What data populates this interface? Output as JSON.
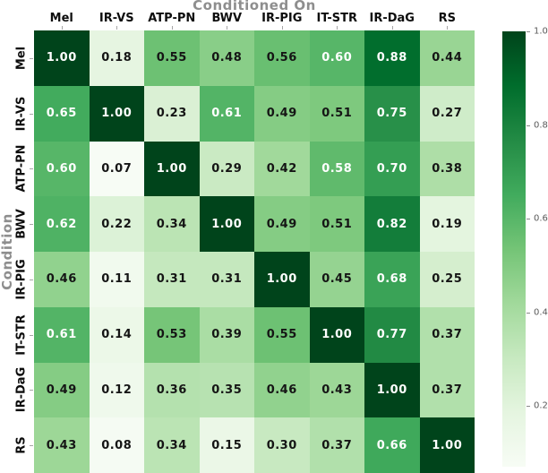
{
  "chart_data": {
    "type": "heatmap",
    "title": "Conditioned On",
    "ylabel": "Condition",
    "columns": [
      "Mel",
      "IR-VS",
      "ATP-PN",
      "BWV",
      "IR-PIG",
      "IT-STR",
      "IR-DaG",
      "RS"
    ],
    "rows": [
      "Mel",
      "IR-VS",
      "ATP-PN",
      "BWV",
      "IR-PIG",
      "IT-STR",
      "IR-DaG",
      "RS"
    ],
    "values": [
      [
        1.0,
        0.18,
        0.55,
        0.48,
        0.56,
        0.6,
        0.88,
        0.44
      ],
      [
        0.65,
        1.0,
        0.23,
        0.61,
        0.49,
        0.51,
        0.75,
        0.27
      ],
      [
        0.6,
        0.07,
        1.0,
        0.29,
        0.42,
        0.58,
        0.7,
        0.38
      ],
      [
        0.62,
        0.22,
        0.34,
        1.0,
        0.49,
        0.51,
        0.82,
        0.19
      ],
      [
        0.46,
        0.11,
        0.31,
        0.31,
        1.0,
        0.45,
        0.68,
        0.25
      ],
      [
        0.61,
        0.14,
        0.53,
        0.39,
        0.55,
        1.0,
        0.77,
        0.37
      ],
      [
        0.49,
        0.12,
        0.36,
        0.35,
        0.46,
        0.43,
        1.0,
        0.37
      ],
      [
        0.43,
        0.08,
        0.34,
        0.15,
        0.3,
        0.37,
        0.66,
        1.0
      ]
    ],
    "value_decimals": 2,
    "vmin": 0.07,
    "vmax": 1.0,
    "colormap": "Greens",
    "colormap_stops": [
      "#f7fcf5",
      "#e5f5e0",
      "#c7e9c0",
      "#a1d99b",
      "#74c476",
      "#41ab5d",
      "#238b45",
      "#006d2c",
      "#00441b"
    ],
    "annotation_colors": {
      "light_text": "#ffffff",
      "dark_text": "#151515",
      "luminance_threshold": 0.408
    },
    "colorbar": {
      "ticks": [
        1.0,
        0.8,
        0.6,
        0.4,
        0.2
      ],
      "tick_labels": [
        "1.0",
        "0.8",
        "0.6",
        "0.4",
        "0.2"
      ]
    },
    "legend_position": "right",
    "grid": false
  }
}
